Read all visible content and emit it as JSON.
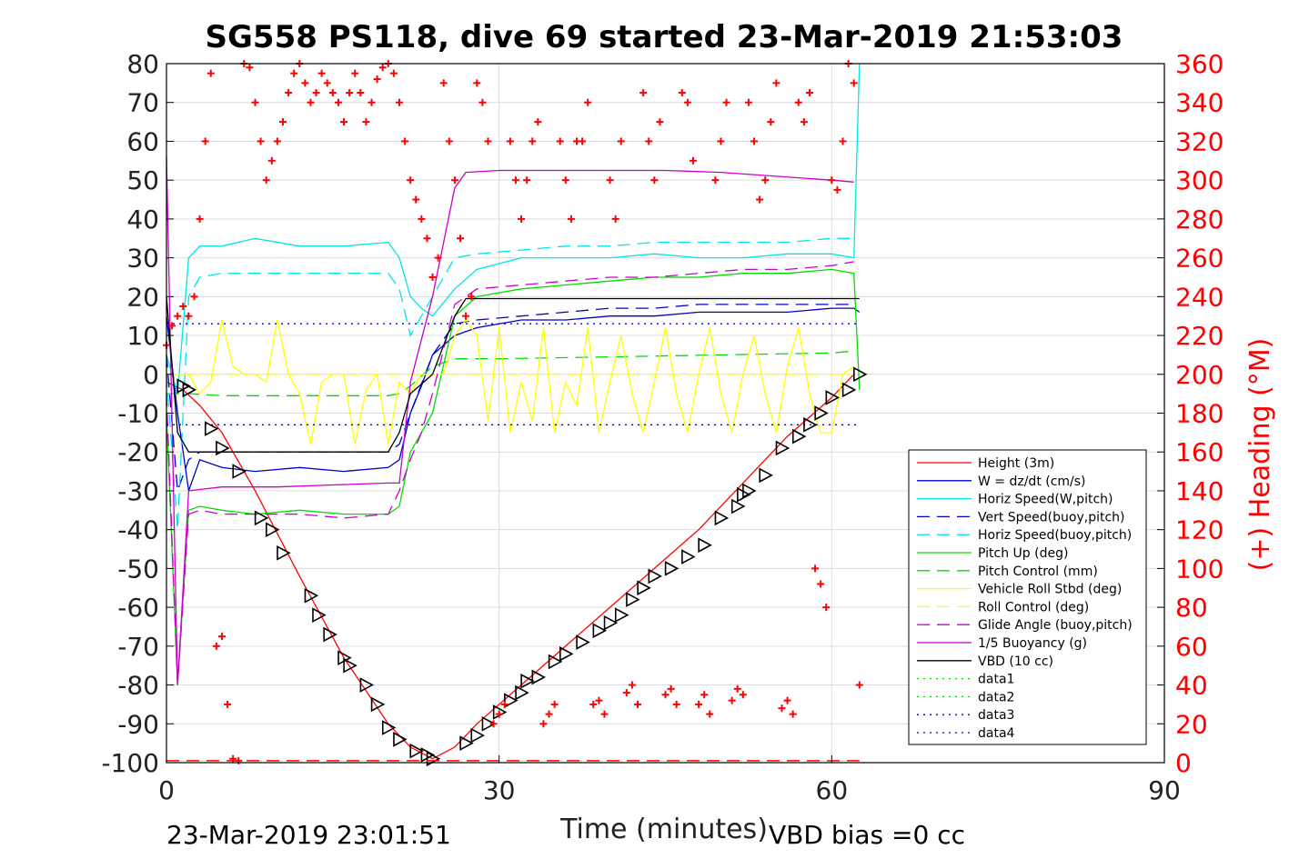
{
  "chart_data": {
    "type": "line",
    "title": "SG558 PS118, dive 69 started 23-Mar-2019 21:53:03",
    "xlabel": "Time (minutes)",
    "ylabel_right": "(+) Heading (°M)",
    "xlim": [
      0,
      90
    ],
    "ylim_left": [
      -100,
      80
    ],
    "ylim_right": [
      0,
      360
    ],
    "x_ticks": [
      0,
      30,
      60,
      90
    ],
    "y_ticks_left": [
      80,
      70,
      60,
      50,
      40,
      30,
      20,
      10,
      0,
      -10,
      -20,
      -30,
      -40,
      -50,
      -60,
      -70,
      -80,
      -90,
      -100
    ],
    "y_ticks_right": [
      360,
      340,
      320,
      300,
      280,
      260,
      240,
      220,
      200,
      180,
      160,
      140,
      120,
      100,
      80,
      60,
      40,
      20,
      0
    ],
    "grid": true,
    "legend_position": "bottom-right",
    "footer_left": "23-Mar-2019 23:01:51",
    "footer_right": "VBD bias =0 cc",
    "colors": {
      "height": "#ff0000",
      "w": "#0000cc",
      "horiz_w": "#00e5e5",
      "vert_buoy": "#0000cc",
      "horiz_buoy": "#00e5e5",
      "pitch_up": "#00dd00",
      "pitch_control": "#00dd00",
      "roll": "#ffff00",
      "roll_control": "#ffff00",
      "glide": "#cc00cc",
      "buoyancy": "#cc00cc",
      "vbd": "#000000",
      "data1": "#00dd00",
      "data2": "#00dd00",
      "data3": "#0000cc",
      "data4": "#0000cc",
      "heading": "#ff0000"
    },
    "series": [
      {
        "name": "Height (3m)",
        "style": "solid",
        "color": "#ff0000",
        "x": [
          0,
          1.5,
          3,
          5,
          8,
          12,
          16,
          20,
          22,
          24,
          26,
          28,
          32,
          36,
          40,
          44,
          48,
          52,
          56,
          60,
          62
        ],
        "y": [
          -2,
          -4,
          -8,
          -15,
          -30,
          -52,
          -73,
          -90,
          -96,
          -99,
          -96,
          -90,
          -80,
          -70,
          -60,
          -50,
          -40,
          -28,
          -16,
          -6,
          0
        ]
      },
      {
        "name": "W = dz/dt (cm/s)",
        "style": "solid",
        "color": "#0000cc",
        "x": [
          0,
          1,
          2,
          3,
          5,
          8,
          12,
          16,
          20,
          21,
          22,
          23,
          24,
          26,
          28,
          32,
          36,
          40,
          44,
          48,
          52,
          56,
          60,
          62,
          62.5
        ],
        "y": [
          15,
          -10,
          -30,
          -22,
          -24,
          -25,
          -24,
          -25,
          -24,
          -22,
          -10,
          -3,
          5,
          10,
          12,
          14,
          14,
          15,
          15,
          16,
          16,
          16,
          17,
          17,
          16
        ]
      },
      {
        "name": "Horiz Speed(W,pitch)",
        "style": "solid",
        "color": "#00e5e5",
        "x": [
          0,
          1,
          2,
          3,
          5,
          8,
          12,
          16,
          20,
          21,
          22,
          23,
          24,
          26,
          28,
          32,
          36,
          40,
          44,
          48,
          52,
          56,
          60,
          62,
          62.5
        ],
        "y": [
          5,
          -5,
          30,
          33,
          33,
          35,
          33,
          33,
          34,
          30,
          20,
          17,
          15,
          22,
          27,
          30,
          30,
          30,
          31,
          30,
          30,
          31,
          31,
          30,
          80
        ]
      },
      {
        "name": "Vert Speed(buoy,pitch)",
        "style": "dash",
        "color": "#0000cc",
        "x": [
          0,
          1,
          2,
          3,
          5,
          10,
          15,
          20,
          21,
          22,
          24,
          26,
          28,
          32,
          36,
          40,
          44,
          48,
          52,
          56,
          60,
          62
        ],
        "y": [
          5,
          -30,
          -22,
          -20,
          -20,
          -20,
          -20,
          -20,
          -18,
          -10,
          5,
          13,
          14,
          15,
          16,
          17,
          17,
          18,
          18,
          18,
          18,
          18
        ]
      },
      {
        "name": "Horiz Speed(buoy,pitch)",
        "style": "dash",
        "color": "#00e5e5",
        "x": [
          0,
          1,
          2,
          3,
          5,
          10,
          15,
          20,
          21,
          22,
          24,
          26,
          28,
          32,
          36,
          40,
          44,
          48,
          52,
          56,
          60,
          62
        ],
        "y": [
          0,
          -40,
          20,
          25,
          26,
          26,
          26,
          26,
          22,
          10,
          20,
          30,
          31,
          32,
          33,
          33,
          34,
          34,
          34,
          34,
          35,
          35
        ]
      },
      {
        "name": "Pitch Up (deg)",
        "style": "solid",
        "color": "#00dd00",
        "x": [
          0,
          1,
          2,
          3,
          5,
          8,
          12,
          16,
          20,
          21,
          22,
          23,
          24,
          26,
          28,
          32,
          36,
          40,
          44,
          48,
          52,
          56,
          60,
          62,
          62.5
        ],
        "y": [
          -10,
          -80,
          -35,
          -34,
          -35,
          -36,
          -35,
          -36,
          -36,
          -34,
          -20,
          -15,
          -10,
          15,
          20,
          22,
          23,
          24,
          25,
          25,
          26,
          26,
          27,
          26,
          -4
        ]
      },
      {
        "name": "Pitch Control (mm)",
        "style": "dash",
        "color": "#00dd00",
        "x": [
          0,
          2,
          5,
          10,
          15,
          20,
          21,
          22,
          24,
          26,
          30,
          40,
          50,
          60,
          62
        ],
        "y": [
          -5,
          -5,
          -5.5,
          -5.5,
          -5.5,
          -5.5,
          -5,
          -3,
          2,
          4,
          4,
          4.5,
          5,
          5.5,
          6
        ]
      },
      {
        "name": "Vehicle Roll Stbd (deg)",
        "style": "solid",
        "color": "#ffff00",
        "x": [
          0,
          2,
          3,
          4,
          5,
          6,
          7,
          8,
          9,
          10,
          11,
          12,
          13,
          14,
          15,
          16,
          17,
          18,
          19,
          20,
          21,
          22,
          23,
          24,
          25,
          26,
          27,
          28,
          29,
          30,
          31,
          32,
          33,
          34,
          35,
          36,
          37,
          38,
          39,
          40,
          41,
          42,
          43,
          44,
          45,
          46,
          47,
          48,
          49,
          50,
          51,
          52,
          53,
          54,
          55,
          56,
          57,
          58,
          59,
          60,
          61,
          62
        ],
        "y": [
          0,
          0,
          -5,
          -2,
          14,
          2,
          0,
          0,
          -2,
          14,
          0,
          -5,
          -18,
          -2,
          0,
          0,
          -18,
          -4,
          0,
          -18,
          -2,
          -5,
          0,
          0,
          0,
          10,
          14,
          10,
          -12,
          12,
          -15,
          -2,
          -12,
          12,
          -15,
          -2,
          -8,
          12,
          -15,
          -2,
          10,
          -5,
          -15,
          -2,
          12,
          -5,
          -15,
          0,
          12,
          -5,
          -15,
          0,
          10,
          -5,
          -15,
          2,
          12,
          -5,
          -15,
          -15,
          0,
          2
        ]
      },
      {
        "name": "Roll Control (deg)",
        "style": "dash",
        "color": "#ffff00",
        "x": [
          0,
          5,
          10,
          15,
          20,
          25,
          30,
          40,
          50,
          60,
          62
        ],
        "y": [
          0,
          0,
          0,
          0,
          0,
          0,
          0,
          0,
          0,
          0,
          0
        ]
      },
      {
        "name": "Glide Angle (buoy,pitch)",
        "style": "dash",
        "color": "#cc00cc",
        "x": [
          0,
          1,
          2,
          3,
          5,
          8,
          12,
          16,
          20,
          21,
          22,
          23,
          24,
          26,
          28,
          32,
          36,
          40,
          44,
          48,
          52,
          56,
          60,
          62
        ],
        "y": [
          -5,
          -80,
          -36,
          -35,
          -36,
          -36,
          -36,
          -37,
          -36,
          -30,
          -22,
          -15,
          -5,
          18,
          22,
          23,
          24,
          25,
          25,
          26,
          27,
          27,
          28,
          29
        ]
      },
      {
        "name": "1/5 Buoyancy (g)",
        "style": "solid",
        "color": "#cc00cc",
        "x": [
          0,
          1,
          2,
          5,
          10,
          15,
          20,
          21,
          22,
          24,
          26,
          27,
          30,
          35,
          40,
          45,
          50,
          55,
          60,
          62
        ],
        "y": [
          56,
          -80,
          -30,
          -29,
          -29,
          -28.5,
          -28,
          -28,
          -2,
          20,
          48,
          52,
          52.5,
          52.5,
          52.5,
          52.5,
          52,
          51,
          50,
          49.5
        ]
      },
      {
        "name": "VBD (10 cc)",
        "style": "solid",
        "color": "#000000",
        "x": [
          0,
          1,
          2,
          3,
          5,
          10,
          15,
          20,
          21,
          22,
          24,
          26,
          27,
          30,
          40,
          50,
          60,
          62,
          62.5
        ],
        "y": [
          20,
          -15,
          -20,
          -20,
          -20,
          -20,
          -20,
          -20,
          -15,
          -5,
          0,
          15,
          19.5,
          19.5,
          19.5,
          19.5,
          19.5,
          19.5,
          19.5
        ]
      },
      {
        "name": "data1",
        "style": "dot",
        "color": "#00dd00",
        "x": [],
        "y": []
      },
      {
        "name": "data2",
        "style": "dot",
        "color": "#00dd00",
        "x": [],
        "y": []
      },
      {
        "name": "data3",
        "style": "dot",
        "color": "#0000cc",
        "x": [
          0,
          62.5
        ],
        "y": [
          13,
          13
        ]
      },
      {
        "name": "data4",
        "style": "dot",
        "color": "#0000cc",
        "x": [
          0,
          62.5
        ],
        "y": [
          -13,
          -13
        ]
      }
    ],
    "triangle_markers": {
      "x": [
        1.5,
        2,
        4,
        5,
        6.5,
        8.5,
        9.5,
        10.5,
        13,
        13.7,
        14.7,
        16,
        16.5,
        18,
        19,
        20,
        21,
        22.5,
        23.5,
        24,
        27,
        28,
        29,
        30,
        31,
        32,
        32.5,
        33.5,
        35,
        36,
        37.5,
        39,
        40,
        41,
        42,
        43,
        44,
        45.5,
        47,
        48.5,
        50,
        51.5,
        52,
        52.5,
        54,
        55.5,
        57,
        58,
        59,
        60,
        61.5,
        62.5
      ],
      "y": [
        -3,
        -4,
        -14,
        -19,
        -25,
        -37,
        -40,
        -46,
        -57,
        -62,
        -67,
        -73,
        -75,
        -80,
        -85,
        -91,
        -94,
        -97,
        -98,
        -99,
        -95,
        -93,
        -90,
        -87,
        -84,
        -82,
        -79,
        -78,
        -74,
        -72,
        -69,
        -66,
        -64,
        -62,
        -58,
        -55,
        -52,
        -50,
        -47,
        -44,
        -37,
        -34,
        -31,
        -30,
        -26,
        -19,
        -16,
        -13,
        -10,
        -6,
        -4,
        0
      ]
    },
    "heading_series": {
      "name": "(+) Heading (°M)",
      "style": "plus",
      "color": "#ff0000",
      "x": [
        0,
        0.5,
        1,
        1.5,
        2,
        2.5,
        3,
        3.5,
        4,
        4.5,
        5,
        5.5,
        6,
        6.5,
        7,
        7.5,
        8,
        8.5,
        9,
        9.5,
        10,
        10.5,
        11,
        11.5,
        12,
        12.5,
        13,
        13.5,
        14,
        14.5,
        15,
        15.5,
        16,
        16.5,
        17,
        17.5,
        18,
        18.5,
        19,
        19.5,
        20,
        20.5,
        21,
        21.5,
        22,
        22.5,
        23,
        23.5,
        24,
        24.5,
        25,
        25.5,
        26,
        26.5,
        27,
        27.5,
        28,
        28.5,
        29,
        29.5,
        30,
        30.5,
        31,
        31.5,
        32,
        32.5,
        33,
        33.5,
        34,
        34.5,
        35,
        35.5,
        36,
        36.5,
        37,
        37.5,
        38,
        38.5,
        39,
        39.5,
        40,
        40.5,
        41,
        41.5,
        42,
        42.5,
        43,
        43.5,
        44,
        44.5,
        45,
        45.5,
        46,
        46.5,
        47,
        47.5,
        48,
        48.5,
        49,
        49.5,
        50,
        50.5,
        51,
        51.5,
        52,
        52.5,
        53,
        53.5,
        54,
        54.5,
        55,
        55.5,
        56,
        56.5,
        57,
        57.5,
        58,
        58.5,
        59,
        59.5,
        60,
        60.5,
        61,
        61.5,
        62,
        62.5
      ],
      "y": [
        215,
        225,
        230,
        235,
        230,
        240,
        280,
        320,
        355,
        60,
        65,
        30,
        2,
        1,
        360,
        358,
        340,
        320,
        300,
        310,
        320,
        330,
        345,
        355,
        360,
        350,
        340,
        345,
        355,
        350,
        345,
        340,
        330,
        345,
        355,
        345,
        330,
        340,
        352,
        358,
        360,
        355,
        340,
        320,
        300,
        290,
        280,
        270,
        250,
        260,
        350,
        320,
        300,
        270,
        230,
        240,
        350,
        340,
        320,
        20,
        25,
        30,
        320,
        300,
        280,
        300,
        320,
        330,
        20,
        25,
        30,
        320,
        300,
        280,
        320,
        320,
        340,
        30,
        32,
        25,
        300,
        280,
        320,
        36,
        40,
        30,
        345,
        320,
        300,
        330,
        35,
        38,
        30,
        345,
        340,
        310,
        30,
        35,
        25,
        300,
        320,
        340,
        32,
        38,
        35,
        340,
        320,
        290,
        300,
        330,
        350,
        28,
        32,
        25,
        340,
        330,
        345,
        100,
        92,
        80,
        300,
        295,
        320,
        360,
        350,
        40
      ]
    },
    "baseline_series": {
      "name": "heading-baseline",
      "color": "#ff0000",
      "x": [
        0,
        62.5
      ],
      "y": [
        1,
        1
      ]
    }
  },
  "legend": {
    "entries": [
      {
        "label": "Height (3m)",
        "color": "#ff0000",
        "style": "solid"
      },
      {
        "label": "W = dz/dt (cm/s)",
        "color": "#0000cc",
        "style": "solid"
      },
      {
        "label": "Horiz Speed(W,pitch)",
        "color": "#00e5e5",
        "style": "solid"
      },
      {
        "label": "Vert Speed(buoy,pitch)",
        "color": "#0000cc",
        "style": "dash"
      },
      {
        "label": "Horiz Speed(buoy,pitch)",
        "color": "#00e5e5",
        "style": "dash"
      },
      {
        "label": "Pitch Up (deg)",
        "color": "#00dd00",
        "style": "solid"
      },
      {
        "label": "Pitch Control (mm)",
        "color": "#00dd00",
        "style": "dash"
      },
      {
        "label": "Vehicle Roll Stbd (deg)",
        "color": "#ffff00",
        "style": "solid"
      },
      {
        "label": "Roll Control (deg)",
        "color": "#ffff00",
        "style": "dash"
      },
      {
        "label": "Glide Angle (buoy,pitch)",
        "color": "#cc00cc",
        "style": "dash"
      },
      {
        "label": "1/5 Buoyancy (g)",
        "color": "#cc00cc",
        "style": "solid"
      },
      {
        "label": "VBD (10 cc)",
        "color": "#000000",
        "style": "solid"
      },
      {
        "label": "data1",
        "color": "#00dd00",
        "style": "dot"
      },
      {
        "label": "data2",
        "color": "#00dd00",
        "style": "dot"
      },
      {
        "label": "data3",
        "color": "#0000cc",
        "style": "dot"
      },
      {
        "label": "data4",
        "color": "#0000cc",
        "style": "dot"
      }
    ]
  }
}
